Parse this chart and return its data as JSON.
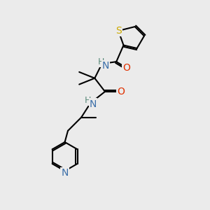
{
  "background_color": "#ebebeb",
  "atom_colors": {
    "C": "#000000",
    "N": "#3a6ea8",
    "O": "#e03000",
    "S": "#ccaa00",
    "NH_color": "#5a8a7a"
  },
  "bond_color": "#000000",
  "bond_width": 1.5,
  "font_size_atoms": 10
}
